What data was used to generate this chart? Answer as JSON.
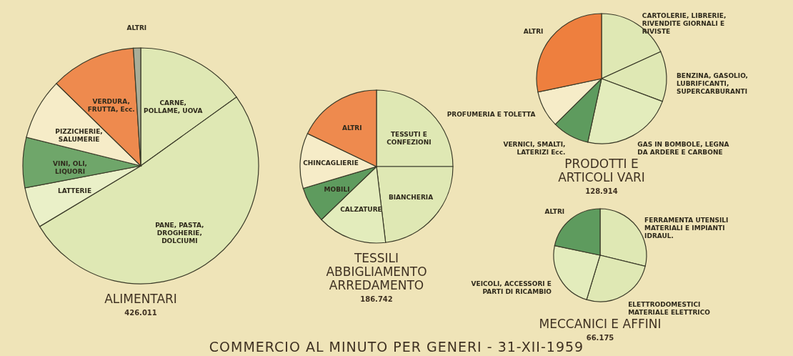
{
  "chart_data": [
    {
      "type": "pie",
      "title": "ALIMENTARI",
      "subtitle": "426.011",
      "categories": [
        "CARNE, POLLAME, UOVA",
        "PANE, PASTA, DROGHERIE, DOLCIUMI",
        "LATTERIE",
        "VINI, OLI, LIQUORI",
        "PIZZICHERIE, SALUMERIE",
        "VERDURA, FRUTTA, Ecc.",
        "ALTRI"
      ],
      "values": [
        15.1,
        51.3,
        5.6,
        6.9,
        8.4,
        11.7,
        1.0
      ],
      "colors": [
        "#dfe8b4",
        "#dfe8b4",
        "#eaf0c8",
        "#6fa66a",
        "#f6ecc8",
        "#ee8a4e",
        "#a9ad98"
      ],
      "annotations": [
        "COMMERCIO AL MINUTO PER GENERI - 31-XII-1959"
      ]
    },
    {
      "type": "pie",
      "title": "TESSILI ABBIGLIAMENTO ARREDAMENTO",
      "subtitle": "186.742",
      "categories": [
        "TESSUTI E CONFEZIONI",
        "BIANCHERIA",
        "CALZATURE",
        "MOBILI",
        "CHINCAGLIERIE",
        "ALTRI"
      ],
      "values": [
        25.0,
        23.1,
        14.7,
        7.6,
        11.7,
        17.9
      ],
      "colors": [
        "#dfe8b4",
        "#dfe8b4",
        "#e3ecbc",
        "#5e9b5e",
        "#f6ecc8",
        "#ee8a4e"
      ]
    },
    {
      "type": "pie",
      "title": "PRODOTTI E ARTICOLI VARI",
      "subtitle": "128.914",
      "categories": [
        "CARTOLERIE, LIBRERIE, RIVENDITE GIORNALI E RIVISTE",
        "BENZINA, GASOLIO, LUBRIFICANTI, SUPERCARBURANTI",
        "GAS IN BOMBOLE, LEGNA DA ARDERE E CARBONE",
        "VERNICI, SMALTI, LATERIZI Ecc.",
        "PROFUMERIA E TOLETTA",
        "ALTRI"
      ],
      "values": [
        18.2,
        12.5,
        22.7,
        9.2,
        9.1,
        28.3
      ],
      "colors": [
        "#dfe8b4",
        "#dfe8b4",
        "#e3ecbc",
        "#5e9b5e",
        "#f6ecc8",
        "#ee7f3e"
      ]
    },
    {
      "type": "pie",
      "title": "MECCANICI E AFFINI",
      "subtitle": "66.175",
      "categories": [
        "FERRAMENTA UTENSILI MATERIALI E IMPIANTI IDRAUL.",
        "ELETTRODOMESTICI MATERIALE ELETTRICO",
        "VEICOLI, ACCESSORI E PARTI DI RICAMBIO",
        "ALTRI"
      ],
      "values": [
        28.8,
        25.9,
        23.6,
        21.7
      ],
      "colors": [
        "#dfe8b4",
        "#dfe8b4",
        "#e3ecbc",
        "#5e9b5e"
      ]
    }
  ]
}
